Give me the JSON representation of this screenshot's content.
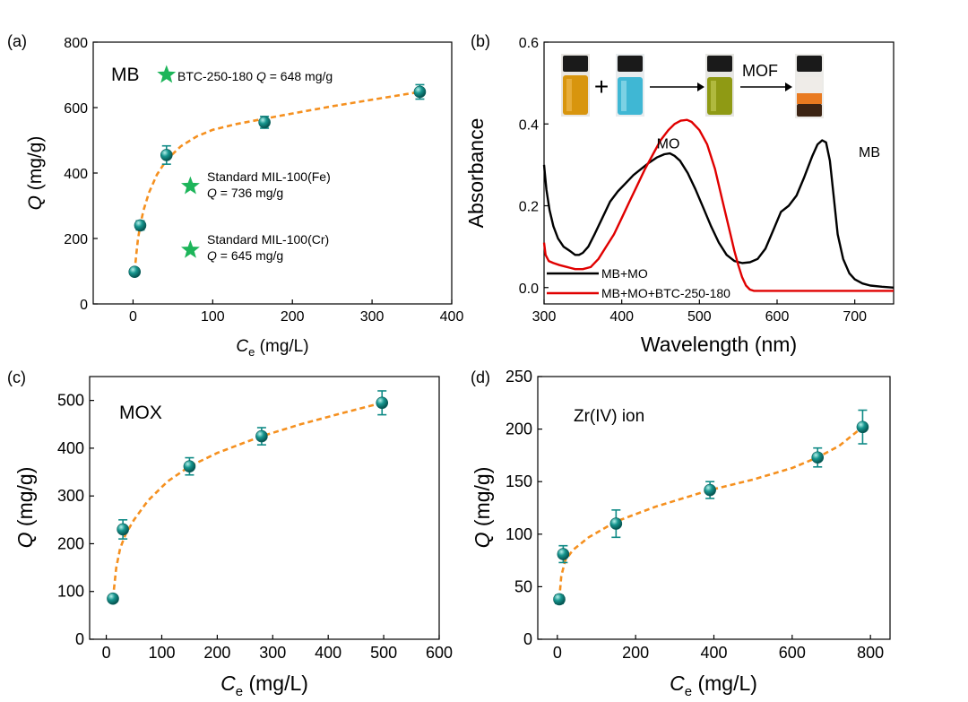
{
  "colors": {
    "marker": "#0f8a86",
    "marker_light": "#9ee3dc",
    "fit": "#f5901f",
    "star": "#1db55a",
    "mb_mo": "#000000",
    "mb_mo_btc": "#e00000"
  },
  "chart_data": [
    {
      "id": "a",
      "panel_label": "(a)",
      "type": "scatter",
      "xlabel_sym": "C",
      "xlabel_sub": "e",
      "xlabel_unit": " (mg/L)",
      "ylabel_sym": "Q",
      "ylabel_unit": " (mg/g)",
      "xlim": [
        -50,
        400
      ],
      "ylim": [
        0,
        800
      ],
      "xticks": [
        0,
        100,
        200,
        300,
        400
      ],
      "yticks": [
        0,
        200,
        400,
        600,
        800
      ],
      "label": "MB",
      "points": [
        {
          "x": 2,
          "y": 98,
          "err": 8
        },
        {
          "x": 9,
          "y": 240,
          "err": 14
        },
        {
          "x": 42,
          "y": 455,
          "err": 28
        },
        {
          "x": 165,
          "y": 555,
          "err": 18
        },
        {
          "x": 360,
          "y": 648,
          "err": 22
        }
      ],
      "fit": [
        [
          2,
          98
        ],
        [
          4,
          150
        ],
        [
          6,
          195
        ],
        [
          9,
          240
        ],
        [
          13,
          285
        ],
        [
          20,
          340
        ],
        [
          30,
          395
        ],
        [
          42,
          440
        ],
        [
          60,
          482
        ],
        [
          80,
          512
        ],
        [
          100,
          532
        ],
        [
          130,
          550
        ],
        [
          165,
          566
        ],
        [
          200,
          582
        ],
        [
          250,
          604
        ],
        [
          300,
          624
        ],
        [
          360,
          648
        ]
      ],
      "annotations": [
        {
          "x": 42,
          "y": 700,
          "prefix": "BTC-250-180 ",
          "q": "Q",
          "suffix": " = 648 mg/g"
        },
        {
          "x": 72,
          "y": 360,
          "line1": "Standard MIL-100(Fe)",
          "q": "Q",
          "suffix": " = 736 mg/g"
        },
        {
          "x": 72,
          "y": 165,
          "line1": "Standard MIL-100(Cr)",
          "q": "Q",
          "suffix": " = 645 mg/g"
        }
      ]
    },
    {
      "id": "b",
      "panel_label": "(b)",
      "type": "line",
      "xlabel": "Wavelength (nm)",
      "ylabel": "Absorbance",
      "xlim": [
        300,
        750
      ],
      "ylim": [
        -0.04,
        0.6
      ],
      "xticks": [
        300,
        400,
        500,
        600,
        700
      ],
      "yticks": [
        0.0,
        0.2,
        0.4,
        0.6
      ],
      "ytick_labels": [
        "0.0",
        "0.2",
        "0.4",
        "0.6"
      ],
      "series": [
        {
          "name": "MB+MO",
          "x": [
            300,
            303,
            307,
            312,
            318,
            325,
            333,
            340,
            345,
            350,
            357,
            365,
            375,
            385,
            395,
            405,
            415,
            425,
            435,
            445,
            455,
            462,
            468,
            475,
            485,
            495,
            505,
            515,
            525,
            535,
            545,
            555,
            565,
            575,
            585,
            595,
            605,
            615,
            625,
            635,
            645,
            652,
            658,
            663,
            668,
            673,
            678,
            685,
            693,
            700,
            710,
            720,
            735,
            750
          ],
          "y": [
            0.3,
            0.24,
            0.19,
            0.15,
            0.12,
            0.1,
            0.09,
            0.08,
            0.08,
            0.085,
            0.1,
            0.13,
            0.17,
            0.21,
            0.235,
            0.255,
            0.275,
            0.29,
            0.305,
            0.318,
            0.326,
            0.328,
            0.322,
            0.31,
            0.28,
            0.24,
            0.195,
            0.15,
            0.11,
            0.08,
            0.065,
            0.06,
            0.062,
            0.07,
            0.095,
            0.14,
            0.185,
            0.2,
            0.225,
            0.27,
            0.32,
            0.35,
            0.36,
            0.355,
            0.31,
            0.22,
            0.13,
            0.07,
            0.035,
            0.02,
            0.01,
            0.005,
            0.002,
            0.0
          ]
        },
        {
          "name": "MB+MO+BTC-250-180",
          "x": [
            300,
            302,
            306,
            312,
            320,
            330,
            340,
            350,
            360,
            370,
            380,
            390,
            400,
            410,
            420,
            430,
            440,
            450,
            460,
            468,
            476,
            484,
            490,
            500,
            510,
            520,
            530,
            540,
            545,
            550,
            555,
            560,
            565,
            570,
            580,
            590,
            600,
            620,
            650,
            700,
            750
          ],
          "y": [
            0.11,
            0.08,
            0.065,
            0.06,
            0.055,
            0.05,
            0.045,
            0.045,
            0.05,
            0.07,
            0.1,
            0.13,
            0.17,
            0.21,
            0.25,
            0.29,
            0.325,
            0.36,
            0.385,
            0.4,
            0.408,
            0.41,
            0.405,
            0.385,
            0.35,
            0.29,
            0.21,
            0.13,
            0.09,
            0.055,
            0.025,
            0.005,
            -0.005,
            -0.008,
            -0.008,
            -0.008,
            -0.008,
            -0.008,
            -0.008,
            -0.008,
            -0.008
          ]
        }
      ],
      "annotations": [
        {
          "text": "MO",
          "x": 445,
          "y": 0.34
        },
        {
          "text": "MB",
          "x": 705,
          "y": 0.32
        }
      ],
      "legend_position": "bottom-left",
      "inset": {
        "plus": "+",
        "mof_label": "MOF"
      }
    },
    {
      "id": "c",
      "panel_label": "(c)",
      "type": "scatter",
      "xlabel_sym": "C",
      "xlabel_sub": "e",
      "xlabel_unit": " (mg/L)",
      "ylabel_sym": "Q",
      "ylabel_unit": " (mg/g)",
      "xlim": [
        -30,
        600
      ],
      "ylim": [
        0,
        550
      ],
      "xticks": [
        0,
        100,
        200,
        300,
        400,
        500,
        600
      ],
      "yticks": [
        0,
        100,
        200,
        300,
        400,
        500
      ],
      "label": "MOX",
      "points": [
        {
          "x": 12,
          "y": 85,
          "err": 6
        },
        {
          "x": 30,
          "y": 230,
          "err": 20
        },
        {
          "x": 150,
          "y": 362,
          "err": 18
        },
        {
          "x": 280,
          "y": 425,
          "err": 18
        },
        {
          "x": 497,
          "y": 495,
          "err": 25
        }
      ],
      "fit": [
        [
          12,
          85
        ],
        [
          18,
          150
        ],
        [
          25,
          190
        ],
        [
          35,
          220
        ],
        [
          50,
          250
        ],
        [
          75,
          290
        ],
        [
          110,
          330
        ],
        [
          150,
          362
        ],
        [
          200,
          390
        ],
        [
          250,
          412
        ],
        [
          280,
          425
        ],
        [
          350,
          450
        ],
        [
          420,
          472
        ],
        [
          497,
          495
        ]
      ]
    },
    {
      "id": "d",
      "panel_label": "(d)",
      "type": "scatter",
      "xlabel_sym": "C",
      "xlabel_sub": "e",
      "xlabel_unit": " (mg/L)",
      "ylabel_sym": "Q",
      "ylabel_unit": " (mg/g)",
      "xlim": [
        -50,
        850
      ],
      "ylim": [
        0,
        250
      ],
      "xticks": [
        0,
        200,
        400,
        600,
        800
      ],
      "yticks": [
        0,
        50,
        100,
        150,
        200,
        250
      ],
      "label": "Zr(IV) ion",
      "points": [
        {
          "x": 5,
          "y": 38,
          "err": 4
        },
        {
          "x": 15,
          "y": 81,
          "err": 8
        },
        {
          "x": 150,
          "y": 110,
          "err": 13
        },
        {
          "x": 390,
          "y": 142,
          "err": 8
        },
        {
          "x": 665,
          "y": 173,
          "err": 9
        },
        {
          "x": 780,
          "y": 202,
          "err": 16
        }
      ],
      "fit": [
        [
          5,
          38
        ],
        [
          10,
          60
        ],
        [
          20,
          75
        ],
        [
          40,
          85
        ],
        [
          80,
          97
        ],
        [
          150,
          112
        ],
        [
          250,
          126
        ],
        [
          390,
          142
        ],
        [
          500,
          152
        ],
        [
          600,
          163
        ],
        [
          665,
          173
        ],
        [
          720,
          184
        ],
        [
          780,
          202
        ]
      ]
    }
  ]
}
